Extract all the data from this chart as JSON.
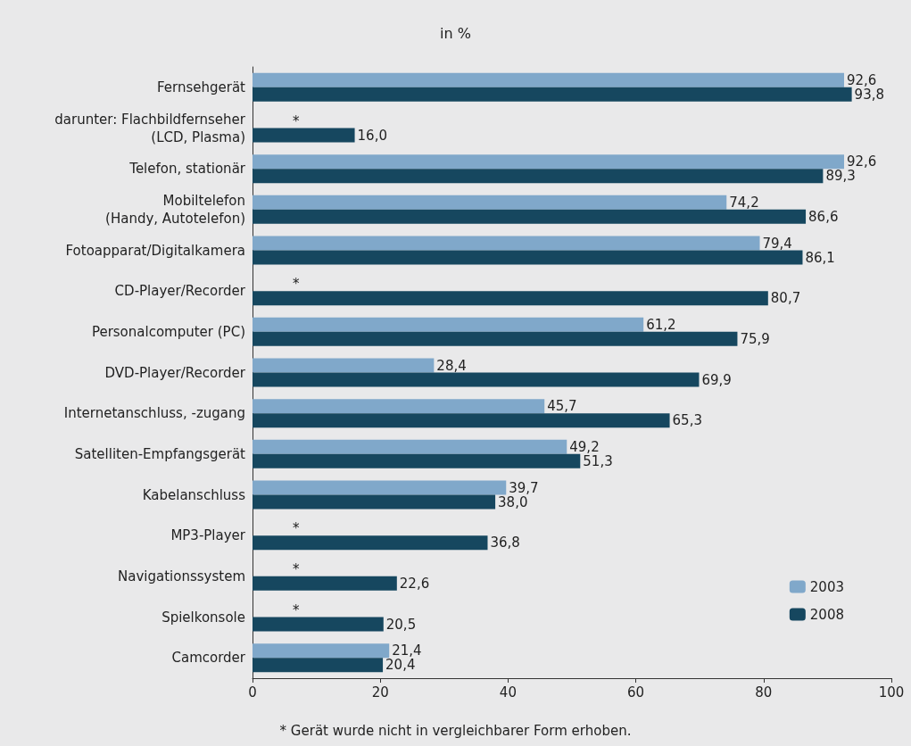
{
  "chart_data": {
    "type": "bar",
    "orientation": "horizontal",
    "title": "in %",
    "categories": [
      "Fernsehgerät",
      "darunter: Flachbildfernseher\n(LCD, Plasma)",
      "Telefon, stationär",
      "Mobiltelefon\n(Handy, Autotelefon)",
      "Fotoapparat/Digitalkamera",
      "CD-Player/Recorder",
      "Personalcomputer (PC)",
      "DVD-Player/Recorder",
      "Internetanschluss, -zugang",
      "Satelliten-Empfangsgerät",
      "Kabelanschluss",
      "MP3-Player",
      "Navigationssystem",
      "Spielkonsole",
      "Camcorder"
    ],
    "series": [
      {
        "name": "2003",
        "color": "#80a8ca",
        "values": [
          92.6,
          null,
          92.6,
          74.2,
          79.4,
          null,
          61.2,
          28.4,
          45.7,
          49.2,
          39.7,
          null,
          null,
          null,
          21.4
        ],
        "value_labels": [
          "92,6",
          "*",
          "92,6",
          "74,2",
          "79,4",
          "*",
          "61,2",
          "28,4",
          "45,7",
          "49,2",
          "39,7",
          "*",
          "*",
          "*",
          "21,4"
        ]
      },
      {
        "name": "2008",
        "color": "#16475f",
        "values": [
          93.8,
          16.0,
          89.3,
          86.6,
          86.1,
          80.7,
          75.9,
          69.9,
          65.3,
          51.3,
          38.0,
          36.8,
          22.6,
          20.5,
          20.4
        ],
        "value_labels": [
          "93,8",
          "16,0",
          "89,3",
          "86,6",
          "86,1",
          "80,7",
          "75,9",
          "69,9",
          "65,3",
          "51,3",
          "38,0",
          "36,8",
          "22,6",
          "20,5",
          "20,4"
        ]
      }
    ],
    "xlim": [
      0,
      100
    ],
    "xticks": [
      0,
      20,
      40,
      60,
      80,
      100
    ],
    "grid": false,
    "legend": "bottom right",
    "annotations": [
      "* Gerät wurde nicht in vergleichbarer Form erhoben."
    ]
  }
}
